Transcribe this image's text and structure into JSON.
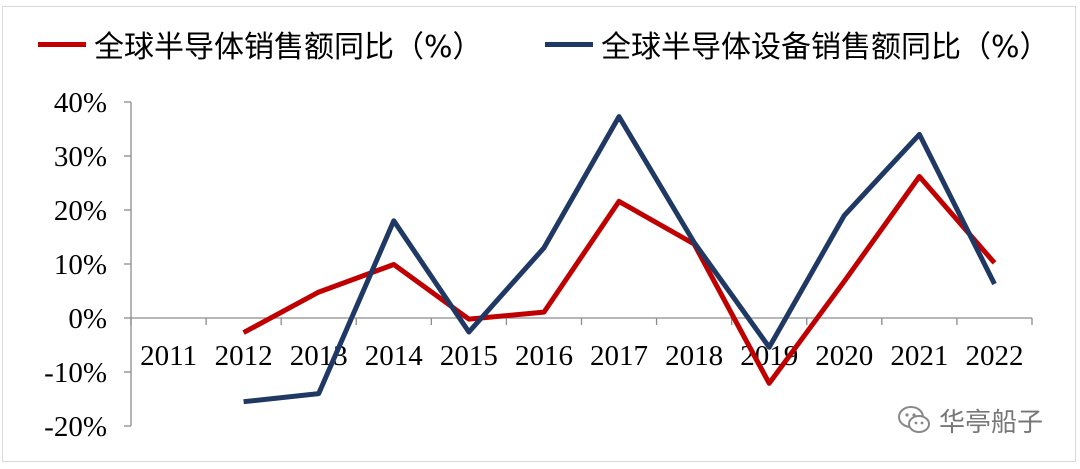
{
  "chart_data": {
    "type": "line",
    "title": "",
    "xlabel": "",
    "ylabel": "",
    "categories": [
      "2011",
      "2012",
      "2013",
      "2014",
      "2015",
      "2016",
      "2017",
      "2018",
      "2019",
      "2020",
      "2021",
      "2022"
    ],
    "ylim": [
      -0.2,
      0.4
    ],
    "yticks": [
      -0.2,
      -0.1,
      0.0,
      0.1,
      0.2,
      0.3,
      0.4
    ],
    "ytick_labels": [
      "-20%",
      "-10%",
      "0%",
      "10%",
      "20%",
      "30%",
      "40%"
    ],
    "grid": false,
    "legend_position": "top",
    "series": [
      {
        "name": "全球半导体销售额同比（%）",
        "color": "#C00000",
        "x": [
          "2012",
          "2013",
          "2014",
          "2015",
          "2016",
          "2017",
          "2018",
          "2019",
          "2020",
          "2021",
          "2022"
        ],
        "values": [
          -0.027,
          0.048,
          0.099,
          -0.002,
          0.011,
          0.216,
          0.137,
          -0.121,
          0.068,
          0.262,
          0.102
        ]
      },
      {
        "name": "全球半导体设备销售额同比（%）",
        "color": "#1F3864",
        "x": [
          "2012",
          "2013",
          "2014",
          "2015",
          "2016",
          "2017",
          "2018",
          "2019",
          "2020",
          "2021",
          "2022"
        ],
        "values": [
          -0.155,
          -0.14,
          0.18,
          -0.026,
          0.13,
          0.373,
          0.14,
          -0.054,
          0.19,
          0.34,
          0.063
        ]
      }
    ]
  },
  "legend": {
    "item1_label": "全球半导体销售额同比（%）",
    "item2_label": "全球半导体设备销售额同比（%）"
  },
  "watermark": {
    "text": "华亭船子",
    "icon": "wechat-icon"
  }
}
